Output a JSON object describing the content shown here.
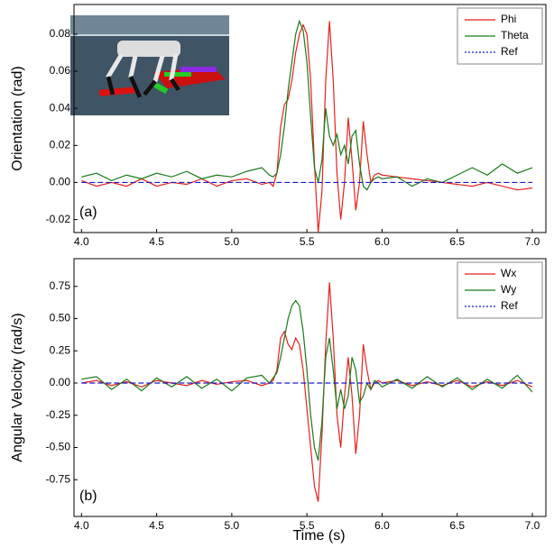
{
  "chart_data": [
    {
      "type": "line",
      "ylabel": "Orientation (rad)",
      "annotation": "(a)",
      "legend": "upper right",
      "x": [
        4.0,
        4.1,
        4.2,
        4.3,
        4.4,
        4.5,
        4.6,
        4.7,
        4.8,
        4.9,
        5.0,
        5.1,
        5.2,
        5.25,
        5.275,
        5.3,
        5.325,
        5.35,
        5.375,
        5.4,
        5.425,
        5.45,
        5.475,
        5.5,
        5.525,
        5.55,
        5.575,
        5.6,
        5.625,
        5.65,
        5.675,
        5.7,
        5.725,
        5.75,
        5.775,
        5.8,
        5.825,
        5.85,
        5.875,
        5.9,
        5.925,
        5.95,
        5.975,
        6.0,
        6.1,
        6.2,
        6.3,
        6.4,
        6.5,
        6.6,
        6.7,
        6.8,
        6.9,
        7.0
      ],
      "series": [
        {
          "name": "Phi",
          "color": "#e8201c",
          "linestyle": "solid",
          "values": [
            0.001,
            -0.002,
            0.0,
            -0.002,
            0.002,
            -0.002,
            0.0,
            -0.001,
            0.002,
            -0.002,
            0.001,
            0.002,
            -0.001,
            0.0,
            -0.002,
            0.005,
            0.03,
            0.042,
            0.045,
            0.055,
            0.07,
            0.08,
            0.085,
            0.08,
            0.055,
            0.01,
            -0.027,
            -0.005,
            0.055,
            0.087,
            0.055,
            0.005,
            -0.02,
            0.0,
            0.035,
            0.012,
            -0.015,
            0.0,
            0.033,
            0.015,
            0.0,
            0.004,
            0.005,
            0.004,
            0.003,
            0.002,
            0.001,
            0.0,
            -0.001,
            -0.002,
            0.0,
            -0.002,
            -0.004,
            -0.003
          ]
        },
        {
          "name": "Theta",
          "color": "#1a7a1a",
          "linestyle": "solid",
          "values": [
            0.003,
            0.005,
            0.001,
            0.004,
            0.002,
            0.005,
            0.003,
            0.006,
            0.002,
            0.004,
            0.003,
            0.006,
            0.008,
            0.004,
            0.003,
            0.005,
            0.015,
            0.03,
            0.05,
            0.065,
            0.08,
            0.087,
            0.082,
            0.065,
            0.035,
            0.008,
            0.0,
            0.012,
            0.04,
            0.025,
            0.02,
            0.026,
            0.015,
            0.02,
            0.01,
            0.025,
            0.028,
            0.01,
            -0.002,
            -0.004,
            0.0,
            0.002,
            0.003,
            0.002,
            0.003,
            -0.002,
            0.002,
            0.0,
            0.004,
            0.008,
            0.004,
            0.01,
            0.005,
            0.008
          ]
        },
        {
          "name": "Ref",
          "color": "#1a1acc",
          "linestyle": "dashed",
          "values": [
            0,
            0,
            0,
            0,
            0,
            0,
            0,
            0,
            0,
            0,
            0,
            0,
            0,
            0,
            0,
            0,
            0,
            0,
            0,
            0,
            0,
            0,
            0,
            0,
            0,
            0,
            0,
            0,
            0,
            0,
            0,
            0,
            0,
            0,
            0,
            0,
            0,
            0,
            0,
            0,
            0,
            0,
            0,
            0,
            0,
            0,
            0,
            0,
            0,
            0,
            0,
            0,
            0,
            0
          ]
        }
      ],
      "xlim": [
        3.95,
        7.09
      ],
      "xticks": [
        {
          "value": 4,
          "label": "4.0"
        },
        4.5,
        {
          "value": 5,
          "label": "5.0"
        },
        5.5,
        {
          "value": 6,
          "label": "6.0"
        },
        6.5,
        {
          "value": 7,
          "label": "7.0"
        }
      ],
      "ylim": [
        -0.027,
        0.096
      ],
      "yticks": [
        -0.02,
        {
          "value": 0,
          "label": "0.00"
        },
        0.02,
        0.04,
        0.06,
        0.08
      ]
    },
    {
      "type": "line",
      "xlabel": "Time (s)",
      "ylabel": "Angular Velocity (rad/s)",
      "annotation": "(b)",
      "legend": "upper right",
      "x": [
        4.0,
        4.1,
        4.2,
        4.3,
        4.4,
        4.5,
        4.6,
        4.7,
        4.8,
        4.9,
        5.0,
        5.1,
        5.2,
        5.25,
        5.275,
        5.3,
        5.325,
        5.35,
        5.375,
        5.4,
        5.425,
        5.45,
        5.475,
        5.5,
        5.525,
        5.55,
        5.575,
        5.6,
        5.625,
        5.65,
        5.675,
        5.7,
        5.725,
        5.75,
        5.775,
        5.8,
        5.825,
        5.85,
        5.875,
        5.9,
        5.925,
        5.95,
        5.975,
        6.0,
        6.1,
        6.2,
        6.3,
        6.4,
        6.5,
        6.6,
        6.7,
        6.8,
        6.9,
        7.0
      ],
      "series": [
        {
          "name": "Wx",
          "color": "#e8201c",
          "linestyle": "solid",
          "values": [
            0.0,
            0.02,
            -0.02,
            0.01,
            -0.03,
            0.02,
            0.0,
            -0.02,
            0.02,
            -0.01,
            0.01,
            0.02,
            -0.02,
            0.0,
            0.02,
            0.1,
            0.35,
            0.4,
            0.3,
            0.26,
            0.35,
            0.3,
            0.1,
            -0.2,
            -0.5,
            -0.8,
            -0.92,
            -0.4,
            0.3,
            0.78,
            0.35,
            -0.25,
            -0.5,
            -0.1,
            0.2,
            -0.1,
            -0.55,
            -0.25,
            0.3,
            0.1,
            -0.05,
            0.0,
            0.02,
            0.0,
            0.02,
            -0.02,
            0.01,
            -0.02,
            0.02,
            -0.03,
            0.01,
            -0.02,
            0.02,
            -0.03
          ]
        },
        {
          "name": "Wy",
          "color": "#1a7a1a",
          "linestyle": "solid",
          "values": [
            0.03,
            0.05,
            -0.05,
            0.03,
            -0.06,
            0.04,
            -0.03,
            0.05,
            -0.04,
            0.03,
            -0.06,
            0.04,
            0.06,
            0.0,
            0.04,
            0.08,
            0.2,
            0.35,
            0.5,
            0.6,
            0.64,
            0.6,
            0.4,
            0.1,
            -0.25,
            -0.5,
            -0.6,
            -0.3,
            0.2,
            0.35,
            0.1,
            -0.2,
            -0.05,
            -0.2,
            -0.1,
            0.2,
            0.1,
            -0.15,
            -0.1,
            0.0,
            -0.05,
            0.02,
            0.0,
            -0.03,
            0.03,
            -0.04,
            0.05,
            -0.03,
            0.04,
            -0.05,
            0.03,
            -0.04,
            0.06,
            -0.07
          ]
        },
        {
          "name": "Ref",
          "color": "#1a1acc",
          "linestyle": "dashed",
          "values": [
            0,
            0,
            0,
            0,
            0,
            0,
            0,
            0,
            0,
            0,
            0,
            0,
            0,
            0,
            0,
            0,
            0,
            0,
            0,
            0,
            0,
            0,
            0,
            0,
            0,
            0,
            0,
            0,
            0,
            0,
            0,
            0,
            0,
            0,
            0,
            0,
            0,
            0,
            0,
            0,
            0,
            0,
            0,
            0,
            0,
            0,
            0,
            0,
            0,
            0,
            0,
            0,
            0,
            0
          ]
        }
      ],
      "xlim": [
        3.95,
        7.09
      ],
      "xticks": [
        {
          "value": 4,
          "label": "4.0"
        },
        4.5,
        {
          "value": 5,
          "label": "5.0"
        },
        5.5,
        {
          "value": 6,
          "label": "6.0"
        },
        6.5,
        {
          "value": 7,
          "label": "7.0"
        }
      ],
      "ylim": [
        -1.035,
        0.965
      ],
      "yticks": [
        0.75,
        {
          "value": 0.5,
          "label": "0.50"
        },
        0.25,
        {
          "value": 0,
          "label": "0.00"
        },
        -0.25,
        {
          "value": -0.5,
          "label": "-0.50"
        },
        -0.75
      ]
    }
  ]
}
